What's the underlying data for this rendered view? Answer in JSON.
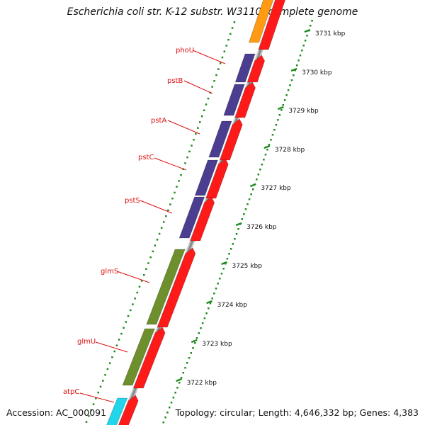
{
  "header": {
    "title": "Escherichia coli str. K-12 substr. W3110, complete genome"
  },
  "footer": {
    "accession": "Accession: AC_000091",
    "topology": "Topology: circular; Length: 4,646,332 bp; Genes: 4,383"
  },
  "colors": {
    "feature_red": "#ff1a1a",
    "feature_blue": "#4b3d8f",
    "feature_green": "#6d8f2c",
    "feature_cyan": "#21d6ea",
    "feature_orange": "#ff9a12",
    "label_red": "#e01010",
    "tick_green": "#1e8a1e",
    "backbone_gray": "#8a8a8a"
  },
  "gene_labels": [
    "phoU",
    "pstB",
    "pstA",
    "pstC",
    "pstS",
    "glmS",
    "glmU",
    "atpC"
  ],
  "scale_labels": [
    "3731 kbp",
    "3730 kbp",
    "3729 kbp",
    "3728 kbp",
    "3727 kbp",
    "3726 kbp",
    "3725 kbp",
    "3724 kbp",
    "3723 kbp",
    "3722 kbp"
  ]
}
